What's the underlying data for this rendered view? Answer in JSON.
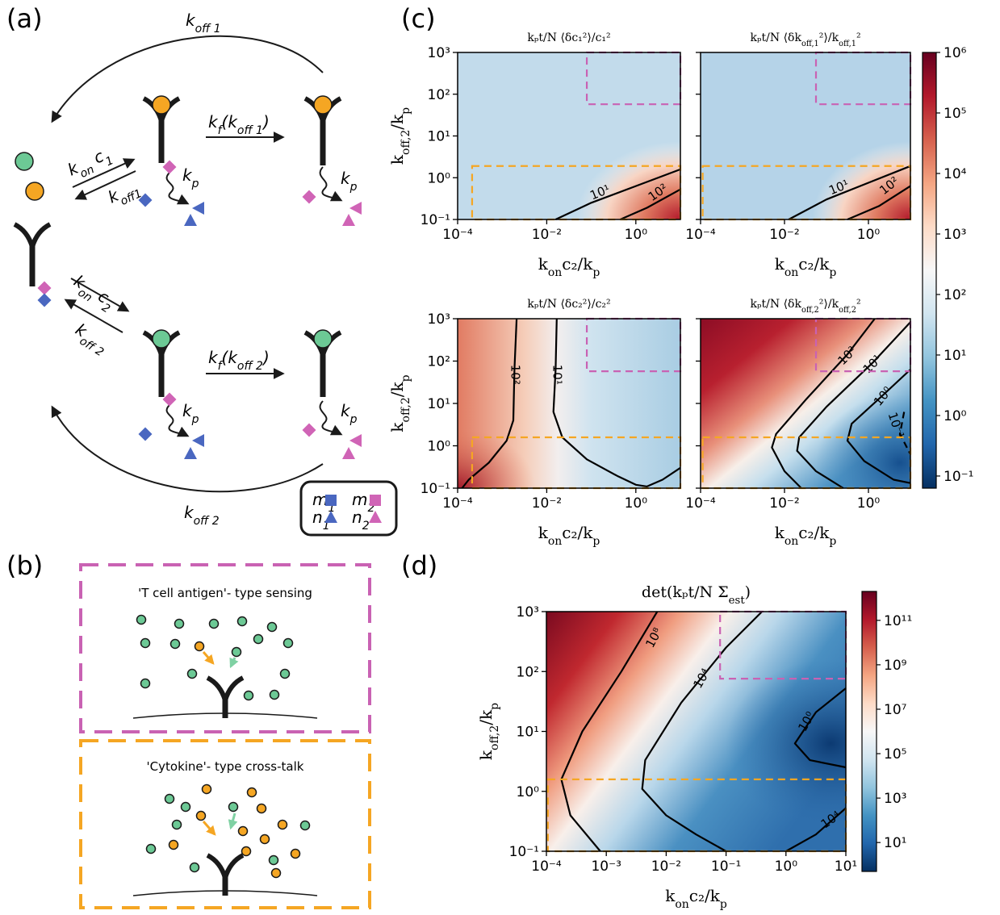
{
  "figure": {
    "panel_labels": [
      "(a)",
      "(b)",
      "(c)",
      "(d)"
    ],
    "diagram_labels": [
      [
        "k",
        {
          "sub": "off 1"
        }
      ],
      [
        "k",
        {
          "sub": "on"
        },
        " c",
        {
          "sub": "1"
        }
      ],
      [
        "k",
        {
          "sub": "off1"
        }
      ],
      [
        "k",
        {
          "sub": "f"
        },
        "(k",
        {
          "sub": "off 1"
        },
        ")"
      ],
      [
        "k",
        {
          "sub": "p"
        }
      ],
      [
        "k",
        {
          "sub": "p"
        }
      ],
      [
        "k",
        {
          "sub": "on"
        },
        " c",
        {
          "sub": "2"
        }
      ],
      [
        "k",
        {
          "sub": "off 2"
        }
      ],
      [
        "k",
        {
          "sub": "f"
        },
        "(k",
        {
          "sub": "off 2"
        },
        ")"
      ],
      [
        "k",
        {
          "sub": "p"
        }
      ],
      [
        "k",
        {
          "sub": "p"
        }
      ],
      [
        "k",
        {
          "sub": "off 2"
        }
      ]
    ],
    "legend": [
      [
        "m",
        {
          "sub": "1"
        }
      ],
      [
        "m",
        {
          "sub": "2"
        }
      ],
      [
        "n",
        {
          "sub": "1"
        }
      ],
      [
        "n",
        {
          "sub": "2"
        }
      ]
    ],
    "scenarios": [
      "'T cell antigen'- type sensing",
      "'Cytokine'- type cross-talk"
    ]
  },
  "chart_data": [
    {
      "type": "heatmap",
      "colormap": "RdBu_r",
      "log_scale": true,
      "title": [
        "kₚt/N  ⟨δc₁²⟩/c₁²"
      ],
      "xlabel": [
        "k",
        {
          "sub": "on"
        },
        "c₂/k",
        {
          "sub": "p"
        }
      ],
      "ylabel": [
        "k",
        {
          "sub": "off,2"
        },
        "/k",
        {
          "sub": "p"
        }
      ],
      "xlim": [
        0.0001,
        10
      ],
      "ylim": [
        0.1,
        1000
      ],
      "xticks": [
        {
          "value": 0.0001,
          "label": "10⁻⁴"
        },
        {
          "value": 0.01,
          "label": "10⁻²"
        },
        {
          "value": 1,
          "label": "10⁰"
        }
      ],
      "yticks": [
        {
          "value": 0.1,
          "label": "10⁻¹"
        },
        {
          "value": 1,
          "label": "10⁰"
        },
        {
          "value": 10,
          "label": "10¹"
        },
        {
          "value": 100,
          "label": "10²"
        },
        {
          "value": 1000,
          "label": "10³"
        }
      ],
      "contours": [
        {
          "value": 10,
          "label": "10¹"
        },
        {
          "value": 100,
          "label": "10²"
        }
      ],
      "colorbar": {
        "lim": [
          0.063,
          1000000
        ],
        "ticks": [
          {
            "value": 0.1,
            "label": "10⁻¹"
          },
          {
            "value": 1,
            "label": "10⁰"
          },
          {
            "value": 10,
            "label": "10¹"
          },
          {
            "value": 100,
            "label": "10²"
          },
          {
            "value": 1000,
            "label": "10³"
          },
          {
            "value": 10000,
            "label": "10⁴"
          },
          {
            "value": 100000,
            "label": "10⁵"
          },
          {
            "value": 1000000,
            "label": "10⁶"
          }
        ]
      }
    },
    {
      "type": "heatmap",
      "colormap": "RdBu_r",
      "log_scale": true,
      "title": [
        "kₚt/N  ⟨δk",
        {
          "sub": "off,1"
        },
        "²⟩/k",
        {
          "sub": "off,1"
        },
        "²"
      ],
      "xlabel": [
        "k",
        {
          "sub": "on"
        },
        "c₂/k",
        {
          "sub": "p"
        }
      ],
      "xlim": [
        0.0001,
        10
      ],
      "ylim": [
        0.1,
        1000
      ],
      "xticks": [
        {
          "value": 0.0001,
          "label": "10⁻⁴"
        },
        {
          "value": 0.01,
          "label": "10⁻²"
        },
        {
          "value": 1,
          "label": "10⁰"
        }
      ],
      "yticks": [
        0.1,
        1,
        10,
        100,
        1000
      ],
      "contours": [
        {
          "value": 10,
          "label": "10¹"
        },
        {
          "value": 100,
          "label": "10²"
        }
      ]
    },
    {
      "type": "heatmap",
      "colormap": "RdBu_r",
      "log_scale": true,
      "title": [
        "kₚt/N  ⟨δc₂²⟩/c₂²"
      ],
      "xlabel": [
        "k",
        {
          "sub": "on"
        },
        "c₂/k",
        {
          "sub": "p"
        }
      ],
      "ylabel": [
        "k",
        {
          "sub": "off,2"
        },
        "/k",
        {
          "sub": "p"
        }
      ],
      "xlim": [
        0.0001,
        10
      ],
      "ylim": [
        0.1,
        1000
      ],
      "xticks": [
        {
          "value": 0.0001,
          "label": "10⁻⁴"
        },
        {
          "value": 0.01,
          "label": "10⁻²"
        },
        {
          "value": 1,
          "label": "10⁰"
        }
      ],
      "yticks": [
        {
          "value": 0.1,
          "label": "10⁻¹"
        },
        {
          "value": 1,
          "label": "10⁰"
        },
        {
          "value": 10,
          "label": "10¹"
        },
        {
          "value": 100,
          "label": "10²"
        },
        {
          "value": 1000,
          "label": "10³"
        }
      ],
      "contours": [
        {
          "value": 100,
          "label": "10²"
        },
        {
          "value": 10,
          "label": "10¹"
        }
      ]
    },
    {
      "type": "heatmap",
      "colormap": "RdBu_r",
      "log_scale": true,
      "title": [
        "kₚt/N  ⟨δk",
        {
          "sub": "off,2"
        },
        "²⟩/k",
        {
          "sub": "off,2"
        },
        "²"
      ],
      "xlabel": [
        "k",
        {
          "sub": "on"
        },
        "c₂/k",
        {
          "sub": "p"
        }
      ],
      "xlim": [
        0.0001,
        10
      ],
      "ylim": [
        0.1,
        1000
      ],
      "xticks": [
        {
          "value": 0.0001,
          "label": "10⁻⁴"
        },
        {
          "value": 0.01,
          "label": "10⁻²"
        },
        {
          "value": 1,
          "label": "10⁰"
        }
      ],
      "yticks": [
        0.1,
        1,
        10,
        100,
        1000
      ],
      "contours": [
        {
          "value": 100,
          "label": "10²"
        },
        {
          "value": 10,
          "label": "10¹"
        },
        {
          "value": 1,
          "label": "10⁰"
        },
        {
          "value": 0.1,
          "label": "10⁻¹"
        }
      ]
    },
    {
      "type": "heatmap",
      "colormap": "RdBu_r",
      "log_scale": true,
      "title": [
        "det(kₚt/N ",
        "Σ",
        {
          "sub": "est"
        },
        ")"
      ],
      "xlabel": [
        "k",
        {
          "sub": "on"
        },
        "c₂/k",
        {
          "sub": "p"
        }
      ],
      "ylabel": [
        "k",
        {
          "sub": "off,2"
        },
        "/k",
        {
          "sub": "p"
        }
      ],
      "xlim": [
        0.0001,
        10
      ],
      "ylim": [
        0.1,
        1000
      ],
      "xticks": [
        {
          "value": 0.0001,
          "label": "10⁻⁴"
        },
        {
          "value": 0.001,
          "label": "10⁻³"
        },
        {
          "value": 0.01,
          "label": "10⁻²"
        },
        {
          "value": 0.1,
          "label": "10⁻¹"
        },
        {
          "value": 1,
          "label": "10⁰"
        },
        {
          "value": 10,
          "label": "10¹"
        }
      ],
      "yticks": [
        {
          "value": 0.1,
          "label": "10⁻¹"
        },
        {
          "value": 1,
          "label": "10⁰"
        },
        {
          "value": 10,
          "label": "10¹"
        },
        {
          "value": 100,
          "label": "10²"
        },
        {
          "value": 1000,
          "label": "10³"
        }
      ],
      "contours": [
        {
          "value": 100000000,
          "label": "10⁸"
        },
        {
          "value": 10000,
          "label": "10⁴"
        },
        {
          "value": 1,
          "label": "10⁰"
        },
        {
          "value": 10000,
          "label": "10⁴"
        }
      ],
      "colorbar": {
        "lim": [
          0.5,
          2000000000000
        ],
        "ticks": [
          {
            "value": 10,
            "label": "10¹"
          },
          {
            "value": 1000,
            "label": "10³"
          },
          {
            "value": 100000,
            "label": "10⁵"
          },
          {
            "value": 10000000,
            "label": "10⁷"
          },
          {
            "value": 1000000000,
            "label": "10⁹"
          },
          {
            "value": 100000000000,
            "label": "10¹¹"
          }
        ]
      }
    }
  ]
}
